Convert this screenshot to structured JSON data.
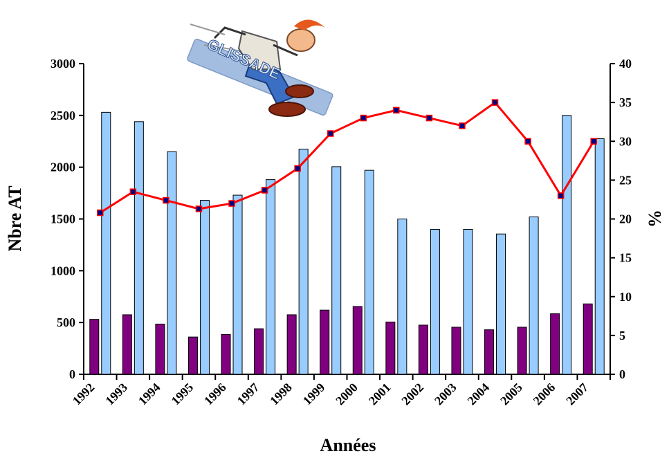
{
  "chart_data": {
    "type": "bar",
    "title": "",
    "categories": [
      "1992",
      "1993",
      "1994",
      "1995",
      "1996",
      "1997",
      "1998",
      "1999",
      "2000",
      "2001",
      "2002",
      "2003",
      "2004",
      "2005",
      "2006",
      "2007"
    ],
    "xlabel": "Années",
    "ylabel": "Nbre AT",
    "y2label": "%",
    "ylim": [
      0,
      3000
    ],
    "y2lim": [
      0,
      40
    ],
    "yticks": [
      0,
      500,
      1000,
      1500,
      2000,
      2500,
      3000
    ],
    "y2ticks": [
      0,
      5,
      10,
      15,
      20,
      25,
      30,
      35,
      40
    ],
    "grid": false,
    "legend": "none",
    "series": [
      {
        "type": "bar",
        "axis": "left",
        "color": "#800080",
        "values": [
          530,
          575,
          485,
          360,
          385,
          440,
          575,
          620,
          655,
          505,
          475,
          455,
          430,
          455,
          585,
          680
        ]
      },
      {
        "type": "bar",
        "axis": "left",
        "color": "#99ccff",
        "values": [
          2530,
          2440,
          2150,
          1680,
          1730,
          1880,
          2175,
          2005,
          1970,
          1500,
          1400,
          1400,
          1355,
          1520,
          2500,
          2275
        ]
      },
      {
        "type": "line",
        "axis": "right",
        "color": "#ff0000",
        "marker_color": "#000080",
        "values": [
          20.8,
          23.5,
          22.4,
          21.3,
          22.0,
          23.7,
          26.5,
          31.0,
          33.0,
          34.0,
          33.0,
          32.0,
          35.0,
          30.0,
          23.0,
          30.0
        ]
      }
    ]
  },
  "illustration": {
    "icon": "glissade-cartoon-icon",
    "text": "GLISSADE"
  }
}
